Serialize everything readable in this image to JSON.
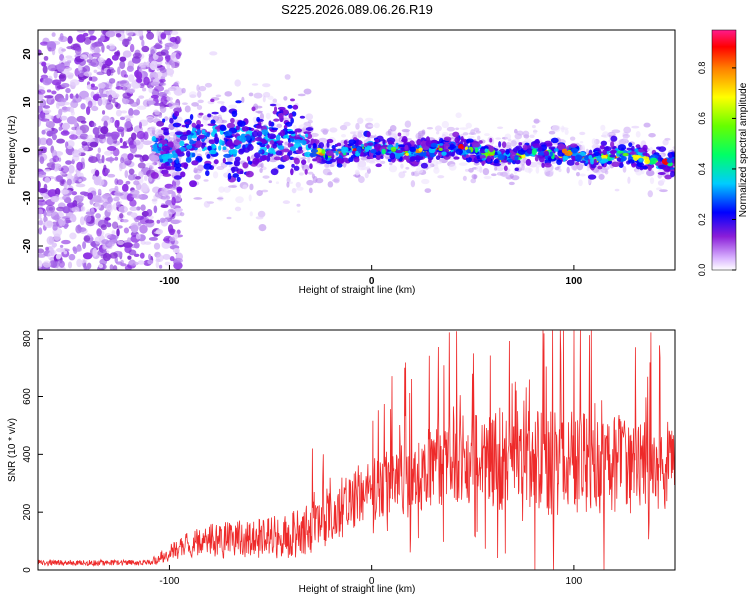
{
  "title": "S225.2026.089.06.26.R19",
  "chart_data": [
    {
      "type": "heatmap",
      "name": "doppler-spectrogram",
      "xlabel": "Height of straight line (km)",
      "ylabel": "Frequency (Hz)",
      "xlim": [
        -165,
        150
      ],
      "ylim": [
        -25,
        25
      ],
      "xticks": [
        -100,
        0,
        100
      ],
      "yticks": [
        -20,
        -10,
        0,
        10,
        20
      ],
      "colorbar": {
        "label": "Normalized spectral amplitude",
        "range": [
          0,
          0.95
        ],
        "ticks": [
          0.0,
          0.2,
          0.4,
          0.6,
          0.8
        ]
      },
      "center_line_hz": [
        {
          "x": -100,
          "y": 0
        },
        {
          "x": -80,
          "y": 2
        },
        {
          "x": -60,
          "y": 1
        },
        {
          "x": -40,
          "y": 3
        },
        {
          "x": -30,
          "y": 0
        },
        {
          "x": -20,
          "y": -1
        },
        {
          "x": -10,
          "y": 0
        },
        {
          "x": 0,
          "y": 0.5
        },
        {
          "x": 10,
          "y": 0
        },
        {
          "x": 20,
          "y": -0.5
        },
        {
          "x": 30,
          "y": 0
        },
        {
          "x": 40,
          "y": 0.5
        },
        {
          "x": 50,
          "y": 0
        },
        {
          "x": 60,
          "y": -1
        },
        {
          "x": 70,
          "y": -2
        },
        {
          "x": 80,
          "y": 0
        },
        {
          "x": 90,
          "y": -1
        },
        {
          "x": 100,
          "y": -0.5
        },
        {
          "x": 110,
          "y": -2
        },
        {
          "x": 120,
          "y": -1
        },
        {
          "x": 130,
          "y": -1
        },
        {
          "x": 140,
          "y": -2.5
        },
        {
          "x": 150,
          "y": -3
        }
      ]
    },
    {
      "type": "line",
      "name": "snr-profile",
      "xlabel": "Height of straight line (km)",
      "ylabel": "SNR (10 * v/v)",
      "xlim": [
        -165,
        150
      ],
      "ylim": [
        0,
        830
      ],
      "xticks": [
        -100,
        0,
        100
      ],
      "yticks": [
        0,
        200,
        400,
        600,
        800
      ],
      "color": "#ee2a2a",
      "envelope": [
        {
          "x": -165,
          "mean": 25,
          "spread": 10
        },
        {
          "x": -110,
          "mean": 25,
          "spread": 10
        },
        {
          "x": -100,
          "mean": 60,
          "spread": 30
        },
        {
          "x": -90,
          "mean": 90,
          "spread": 45
        },
        {
          "x": -80,
          "mean": 100,
          "spread": 60
        },
        {
          "x": -60,
          "mean": 110,
          "spread": 70
        },
        {
          "x": -40,
          "mean": 120,
          "spread": 80
        },
        {
          "x": -30,
          "mean": 140,
          "spread": 90
        },
        {
          "x": -15,
          "mean": 220,
          "spread": 110
        },
        {
          "x": 0,
          "mean": 280,
          "spread": 110
        },
        {
          "x": 20,
          "mean": 330,
          "spread": 130
        },
        {
          "x": 40,
          "mean": 380,
          "spread": 150
        },
        {
          "x": 60,
          "mean": 380,
          "spread": 170
        },
        {
          "x": 80,
          "mean": 370,
          "spread": 180
        },
        {
          "x": 100,
          "mean": 370,
          "spread": 180
        },
        {
          "x": 120,
          "mean": 360,
          "spread": 170
        },
        {
          "x": 150,
          "mean": 360,
          "spread": 150
        }
      ]
    }
  ]
}
